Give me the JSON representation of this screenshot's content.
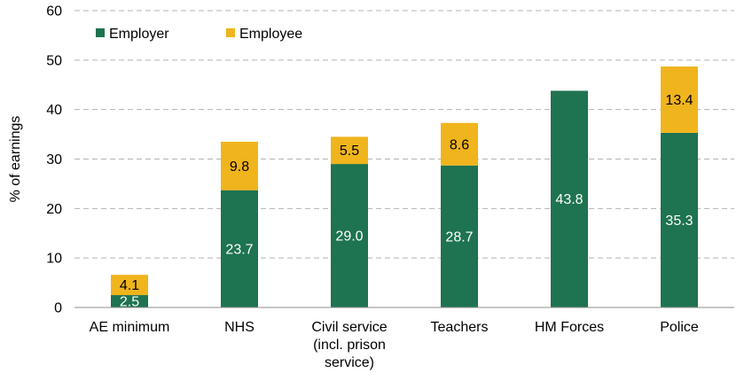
{
  "chart_data": {
    "type": "bar",
    "stacked": true,
    "title": "",
    "xlabel": "",
    "ylabel": "% of earnings",
    "ylim": [
      0,
      60
    ],
    "yticks": [
      0,
      10,
      20,
      30,
      40,
      50,
      60
    ],
    "grid": true,
    "legend_position": "top-left",
    "categories": [
      [
        "AE minimum"
      ],
      [
        "NHS"
      ],
      [
        "Civil service",
        "(incl. prison",
        "service)"
      ],
      [
        "Teachers"
      ],
      [
        "HM Forces"
      ],
      [
        "Police"
      ]
    ],
    "series": [
      {
        "name": "Employer",
        "color": "#1e7350",
        "label_color": "#ffffff",
        "values": [
          2.5,
          23.7,
          29.0,
          28.7,
          43.8,
          35.3
        ],
        "labels": [
          "2.5",
          "23.7",
          "29.0",
          "28.7",
          "43.8",
          "35.3"
        ]
      },
      {
        "name": "Employee",
        "color": "#f0b41c",
        "label_color": "#000000",
        "values": [
          4.1,
          9.8,
          5.5,
          8.6,
          null,
          13.4
        ],
        "labels": [
          "4.1",
          "9.8",
          "5.5",
          "8.6",
          "",
          "13.4"
        ]
      }
    ]
  }
}
